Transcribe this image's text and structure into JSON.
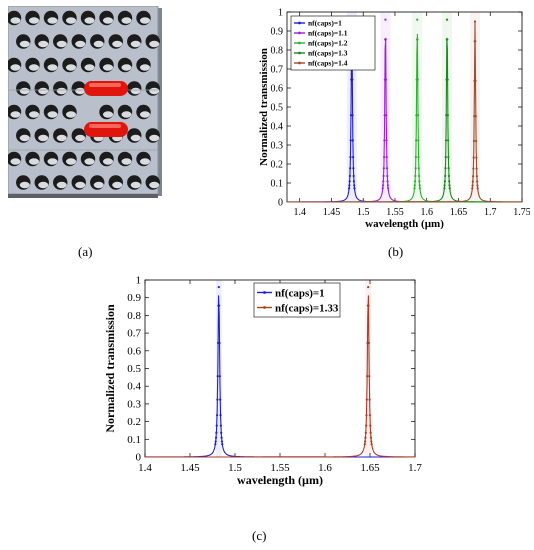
{
  "panels": {
    "a": {
      "label": "(a)"
    },
    "b": {
      "label": "(b)"
    },
    "c": {
      "label": "(c)"
    }
  },
  "photonic_crystal": {
    "slab_color": "#b9bfcb",
    "hole_color": "#1c1c1c",
    "capsule_color": "#e0150e",
    "rows": 8,
    "columns": 8,
    "capsule_count": 2
  },
  "chart_data": [
    {
      "id": "b",
      "type": "line",
      "xlabel": "wavelength (µm)",
      "ylabel": "Normalized transmission",
      "xlim": [
        1.38,
        1.75
      ],
      "ylim": [
        0,
        1
      ],
      "x_ticks": [
        1.4,
        1.45,
        1.5,
        1.55,
        1.6,
        1.65,
        1.7,
        1.75
      ],
      "x_tick_labels": [
        "1.4",
        "1.45",
        "1.5",
        "1.55",
        "1.6",
        "1.65",
        "1.7",
        "1.75"
      ],
      "y_ticks": [
        0,
        0.1,
        0.2,
        0.3,
        0.4,
        0.5,
        0.6,
        0.7,
        0.8,
        0.9,
        1
      ],
      "y_tick_labels": [
        "0",
        "0.1",
        "0.2",
        "0.3",
        "0.4",
        "0.5",
        "0.6",
        "0.7",
        "0.8",
        "0.9",
        "1"
      ],
      "legend_position": "top-left",
      "grid": false,
      "series": [
        {
          "name": "nf(caps)=1",
          "color": "#1f1fd0",
          "peak_x": 1.482,
          "peak_y": 0.96
        },
        {
          "name": "nf(caps)=1.1",
          "color": "#a020d8",
          "peak_x": 1.535,
          "peak_y": 0.96
        },
        {
          "name": "nf(caps)=1.2",
          "color": "#2fb02f",
          "peak_x": 1.585,
          "peak_y": 0.96
        },
        {
          "name": "nf(caps)=1.3",
          "color": "#1a8a1a",
          "peak_x": 1.632,
          "peak_y": 0.96
        },
        {
          "name": "nf(caps)=1.4",
          "color": "#a04a2a",
          "peak_x": 1.676,
          "peak_y": 0.95
        }
      ]
    },
    {
      "id": "c",
      "type": "line",
      "xlabel": "wavelength (µm)",
      "ylabel": "Normalized transmission",
      "xlim": [
        1.4,
        1.7
      ],
      "ylim": [
        0,
        1
      ],
      "x_ticks": [
        1.4,
        1.45,
        1.5,
        1.55,
        1.6,
        1.65,
        1.7
      ],
      "x_tick_labels": [
        "1.4",
        "1.45",
        "1.5",
        "1.55",
        "1.6",
        "1.65",
        "1.7"
      ],
      "y_ticks": [
        0,
        0.1,
        0.2,
        0.3,
        0.4,
        0.5,
        0.6,
        0.7,
        0.8,
        0.9,
        1
      ],
      "y_tick_labels": [
        "0",
        "0.1",
        "0.2",
        "0.3",
        "0.4",
        "0.5",
        "0.6",
        "0.7",
        "0.8",
        "0.9",
        "1"
      ],
      "legend_position": "top-right",
      "grid": false,
      "series": [
        {
          "name": "nf(caps)=1",
          "color": "#1f1fd0",
          "peak_x": 1.482,
          "peak_y": 0.96
        },
        {
          "name": "nf(caps)=1.33",
          "color": "#b03a22",
          "peak_x": 1.648,
          "peak_y": 0.96
        }
      ]
    }
  ]
}
